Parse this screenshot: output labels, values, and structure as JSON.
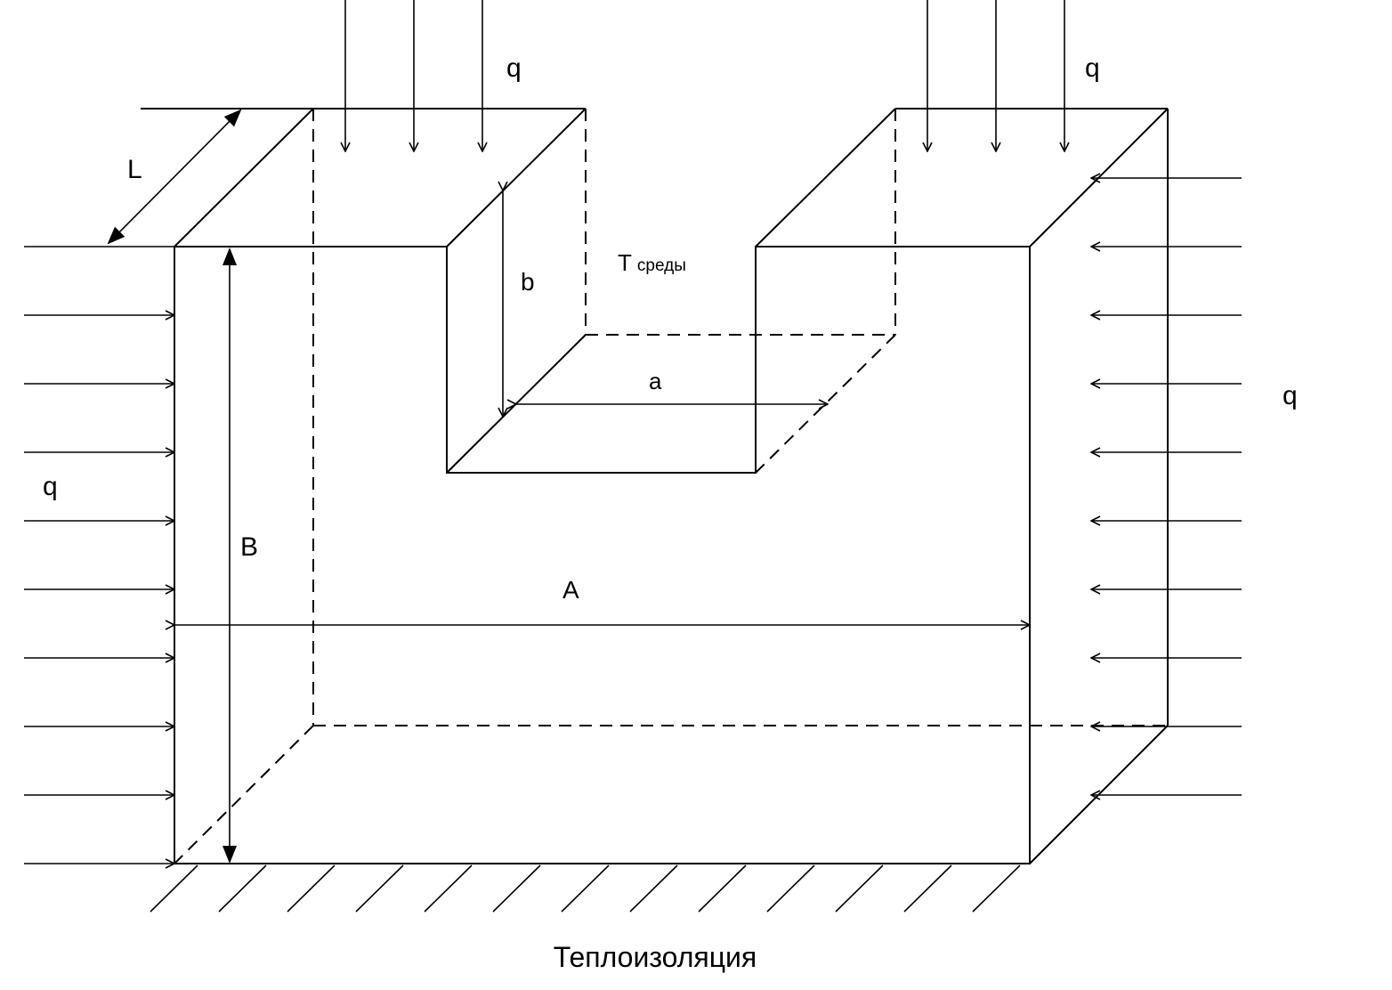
{
  "labels": {
    "q_top_left": "q",
    "q_top_right": "q",
    "q_left": "q",
    "q_right": "q",
    "dim_L": "L",
    "dim_b": "b",
    "dim_a": "a",
    "dim_A": "A",
    "dim_B": "B",
    "t_env_main": "T",
    "t_env_sub": "среды",
    "insulation": "Теплоизоляция"
  }
}
